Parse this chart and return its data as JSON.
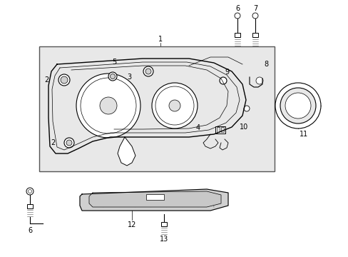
{
  "bg_color": "#ffffff",
  "box_bg": "#e8e8e8",
  "line_color": "#000000",
  "fig_width": 4.89,
  "fig_height": 3.6,
  "dpi": 100
}
